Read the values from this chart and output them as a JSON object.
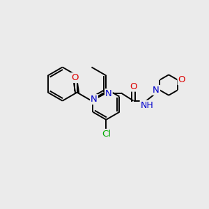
{
  "bg_color": "#ebebeb",
  "bond_color": "#000000",
  "line_width": 1.4,
  "atom_colors": {
    "N": "#0000cc",
    "O": "#dd0000",
    "Cl": "#00aa00",
    "H": "#666666",
    "C": "#000000"
  },
  "font_size": 9.5
}
